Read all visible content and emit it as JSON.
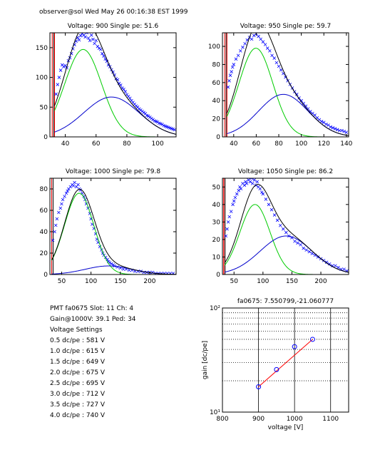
{
  "header": "observer@sol  Wed May 26 00:16:38 EST 1999",
  "colors": {
    "data": "#0000ff",
    "fit1": "#00cc00",
    "fit2": "#0000cc",
    "sum": "#000000",
    "cut": "#ff0000",
    "gain_line": "#ff0000"
  },
  "chart_data": [
    {
      "type": "scatter",
      "title": "Voltage: 900 Single pe: 51.6",
      "xlim": [
        30,
        112
      ],
      "ylim": [
        0,
        175
      ],
      "xticks": [
        40,
        60,
        80,
        100
      ],
      "yticks": [
        0,
        50,
        100,
        150
      ],
      "cuts": [
        31.5,
        33
      ],
      "components": [
        {
          "name": "single pe",
          "amp": 147,
          "mu": 51.6,
          "sigma": 12
        },
        {
          "name": "double pe",
          "amp": 67,
          "mu": 70,
          "sigma": 18
        }
      ],
      "points": [
        [
          34,
          72
        ],
        [
          35,
          88
        ],
        [
          36,
          100
        ],
        [
          37,
          112
        ],
        [
          38,
          121
        ],
        [
          39,
          118
        ],
        [
          40,
          120
        ],
        [
          41,
          116
        ],
        [
          42,
          128
        ],
        [
          43,
          133
        ],
        [
          44,
          140
        ],
        [
          45,
          148
        ],
        [
          46,
          155
        ],
        [
          47,
          161
        ],
        [
          48,
          167
        ],
        [
          49,
          163
        ],
        [
          50,
          170
        ],
        [
          51,
          174
        ],
        [
          52,
          171
        ],
        [
          53,
          168
        ],
        [
          54,
          175
        ],
        [
          55,
          166
        ],
        [
          56,
          162
        ],
        [
          57,
          171
        ],
        [
          58,
          164
        ],
        [
          59,
          157
        ],
        [
          60,
          162
        ],
        [
          61,
          152
        ],
        [
          62,
          149
        ],
        [
          63,
          147
        ],
        [
          64,
          140
        ],
        [
          65,
          136
        ],
        [
          66,
          131
        ],
        [
          67,
          127
        ],
        [
          68,
          121
        ],
        [
          69,
          118
        ],
        [
          70,
          113
        ],
        [
          71,
          109
        ],
        [
          72,
          104
        ],
        [
          73,
          98
        ],
        [
          74,
          96
        ],
        [
          75,
          90
        ],
        [
          76,
          87
        ],
        [
          77,
          82
        ],
        [
          78,
          80
        ],
        [
          79,
          76
        ],
        [
          80,
          71
        ],
        [
          81,
          68
        ],
        [
          82,
          65
        ],
        [
          83,
          61
        ],
        [
          84,
          58
        ],
        [
          85,
          55
        ],
        [
          86,
          52
        ],
        [
          87,
          50
        ],
        [
          88,
          47
        ],
        [
          89,
          45
        ],
        [
          90,
          43
        ],
        [
          91,
          41
        ],
        [
          92,
          39
        ],
        [
          93,
          36
        ],
        [
          94,
          35
        ],
        [
          95,
          33
        ],
        [
          96,
          31
        ],
        [
          97,
          29
        ],
        [
          98,
          27
        ],
        [
          99,
          26
        ],
        [
          100,
          25
        ],
        [
          101,
          23
        ],
        [
          102,
          22
        ],
        [
          103,
          21
        ],
        [
          104,
          19
        ],
        [
          105,
          18
        ],
        [
          106,
          17
        ],
        [
          107,
          16
        ],
        [
          108,
          15
        ],
        [
          109,
          14
        ],
        [
          110,
          13
        ],
        [
          111,
          12
        ]
      ]
    },
    {
      "type": "scatter",
      "title": "Voltage: 950 Single pe: 59.7",
      "xlim": [
        30,
        142
      ],
      "ylim": [
        0,
        115
      ],
      "xticks": [
        40,
        60,
        80,
        100,
        120,
        140
      ],
      "yticks": [
        0,
        20,
        40,
        60,
        80,
        100
      ],
      "cuts": [
        32,
        34
      ],
      "components": [
        {
          "name": "single pe",
          "amp": 98,
          "mu": 59.7,
          "sigma": 15
        },
        {
          "name": "double pe",
          "amp": 47,
          "mu": 84,
          "sigma": 22
        }
      ],
      "points": [
        [
          35,
          55
        ],
        [
          36,
          62
        ],
        [
          37,
          68
        ],
        [
          38,
          72
        ],
        [
          39,
          77
        ],
        [
          40,
          80
        ],
        [
          42,
          86
        ],
        [
          44,
          90
        ],
        [
          46,
          95
        ],
        [
          48,
          99
        ],
        [
          50,
          103
        ],
        [
          52,
          107
        ],
        [
          54,
          110
        ],
        [
          56,
          108
        ],
        [
          58,
          112
        ],
        [
          60,
          114
        ],
        [
          62,
          111
        ],
        [
          64,
          108
        ],
        [
          66,
          105
        ],
        [
          68,
          102
        ],
        [
          70,
          98
        ],
        [
          72,
          95
        ],
        [
          74,
          90
        ],
        [
          76,
          87
        ],
        [
          78,
          82
        ],
        [
          80,
          78
        ],
        [
          82,
          74
        ],
        [
          84,
          70
        ],
        [
          86,
          66
        ],
        [
          88,
          62
        ],
        [
          90,
          58
        ],
        [
          92,
          54
        ],
        [
          94,
          50
        ],
        [
          96,
          47
        ],
        [
          98,
          43
        ],
        [
          100,
          40
        ],
        [
          102,
          37
        ],
        [
          104,
          34
        ],
        [
          106,
          31
        ],
        [
          108,
          28
        ],
        [
          110,
          26
        ],
        [
          112,
          24
        ],
        [
          114,
          21
        ],
        [
          116,
          19
        ],
        [
          118,
          17
        ],
        [
          120,
          16
        ],
        [
          122,
          14
        ],
        [
          124,
          13
        ],
        [
          126,
          11
        ],
        [
          128,
          10
        ],
        [
          130,
          9
        ],
        [
          132,
          8
        ],
        [
          134,
          7
        ],
        [
          136,
          7
        ],
        [
          138,
          6
        ],
        [
          140,
          5
        ]
      ]
    },
    {
      "type": "scatter",
      "title": "Voltage: 1000 Single pe: 79.8",
      "xlim": [
        30,
        245
      ],
      "ylim": [
        0,
        90
      ],
      "xticks": [
        50,
        100,
        150,
        200
      ],
      "yticks": [
        0,
        20,
        40,
        60,
        80
      ],
      "cuts": [
        33
      ],
      "components": [
        {
          "name": "single pe",
          "amp": 76,
          "mu": 79.8,
          "sigma": 25
        },
        {
          "name": "double pe",
          "amp": 8,
          "mu": 130,
          "sigma": 40
        }
      ],
      "points": [
        [
          35,
          32
        ],
        [
          38,
          40
        ],
        [
          40,
          46
        ],
        [
          42,
          52
        ],
        [
          45,
          58
        ],
        [
          48,
          62
        ],
        [
          50,
          66
        ],
        [
          52,
          70
        ],
        [
          55,
          73
        ],
        [
          58,
          76
        ],
        [
          60,
          78
        ],
        [
          62,
          80
        ],
        [
          65,
          82
        ],
        [
          68,
          84
        ],
        [
          70,
          83
        ],
        [
          72,
          86
        ],
        [
          75,
          82
        ],
        [
          78,
          84
        ],
        [
          80,
          80
        ],
        [
          82,
          79
        ],
        [
          85,
          76
        ],
        [
          88,
          73
        ],
        [
          90,
          70
        ],
        [
          92,
          66
        ],
        [
          95,
          62
        ],
        [
          98,
          57
        ],
        [
          100,
          52
        ],
        [
          102,
          47
        ],
        [
          105,
          43
        ],
        [
          108,
          38
        ],
        [
          110,
          33
        ],
        [
          112,
          30
        ],
        [
          115,
          26
        ],
        [
          118,
          23
        ],
        [
          120,
          20
        ],
        [
          122,
          18
        ],
        [
          125,
          16
        ],
        [
          128,
          14
        ],
        [
          130,
          12
        ],
        [
          132,
          11
        ],
        [
          135,
          10
        ],
        [
          138,
          9
        ],
        [
          140,
          8
        ],
        [
          145,
          7
        ],
        [
          150,
          6
        ],
        [
          155,
          5
        ],
        [
          160,
          5
        ],
        [
          165,
          4
        ],
        [
          170,
          4
        ],
        [
          175,
          3
        ],
        [
          180,
          3
        ],
        [
          185,
          3
        ],
        [
          190,
          2
        ],
        [
          195,
          2
        ],
        [
          200,
          2
        ],
        [
          205,
          2
        ],
        [
          210,
          1
        ],
        [
          215,
          1
        ],
        [
          220,
          1
        ],
        [
          225,
          1
        ],
        [
          230,
          1
        ],
        [
          235,
          1
        ],
        [
          240,
          1
        ]
      ]
    },
    {
      "type": "scatter",
      "title": "Voltage: 1050 Single pe: 86.2",
      "xlim": [
        30,
        248
      ],
      "ylim": [
        0,
        55
      ],
      "xticks": [
        50,
        100,
        150,
        200
      ],
      "yticks": [
        0,
        10,
        20,
        30,
        40,
        50
      ],
      "cuts": [
        32,
        34
      ],
      "components": [
        {
          "name": "single pe",
          "amp": 40,
          "mu": 86.2,
          "sigma": 26
        },
        {
          "name": "double pe",
          "amp": 22,
          "mu": 140,
          "sigma": 45
        }
      ],
      "points": [
        [
          36,
          22
        ],
        [
          38,
          26
        ],
        [
          40,
          30
        ],
        [
          42,
          33
        ],
        [
          45,
          36
        ],
        [
          48,
          40
        ],
        [
          50,
          42
        ],
        [
          52,
          44
        ],
        [
          55,
          46
        ],
        [
          58,
          48
        ],
        [
          60,
          50
        ],
        [
          62,
          49
        ],
        [
          65,
          52
        ],
        [
          68,
          51
        ],
        [
          70,
          53
        ],
        [
          72,
          52
        ],
        [
          75,
          54
        ],
        [
          78,
          53
        ],
        [
          80,
          55
        ],
        [
          82,
          52
        ],
        [
          85,
          54
        ],
        [
          88,
          51
        ],
        [
          90,
          53
        ],
        [
          92,
          50
        ],
        [
          95,
          49
        ],
        [
          98,
          47
        ],
        [
          100,
          46
        ],
        [
          105,
          43
        ],
        [
          110,
          40
        ],
        [
          115,
          37
        ],
        [
          120,
          34
        ],
        [
          125,
          31
        ],
        [
          130,
          28
        ],
        [
          135,
          26
        ],
        [
          140,
          24
        ],
        [
          145,
          22
        ],
        [
          150,
          21
        ],
        [
          155,
          19
        ],
        [
          160,
          18
        ],
        [
          165,
          17
        ],
        [
          170,
          15
        ],
        [
          175,
          14
        ],
        [
          180,
          13
        ],
        [
          185,
          12
        ],
        [
          190,
          11
        ],
        [
          195,
          10
        ],
        [
          200,
          9
        ],
        [
          205,
          8
        ],
        [
          210,
          7
        ],
        [
          215,
          6
        ],
        [
          220,
          5
        ],
        [
          225,
          5
        ],
        [
          230,
          4
        ],
        [
          235,
          3
        ],
        [
          240,
          3
        ],
        [
          245,
          2
        ]
      ]
    },
    {
      "type": "scatter",
      "title": "fa0675: 7.550799,-21.060777",
      "xlabel": "voltage [V]",
      "ylabel": "gain [dc/pe]",
      "xlim": [
        800,
        1150
      ],
      "ylim": [
        10,
        100
      ],
      "yscale": "log",
      "xticks": [
        800,
        900,
        1000,
        1100
      ],
      "ytick_labels": [
        "10¹",
        "10²"
      ],
      "grid": true,
      "x": [
        900,
        950,
        1000,
        1050
      ],
      "y": [
        17.5,
        25.6,
        42.5,
        50
      ],
      "fit": {
        "slope": 7.550799,
        "intercept": -21.060777
      }
    }
  ],
  "pmt_info": {
    "line1": "PMT fa0675 Slot: 11 Ch: 4",
    "line2": "Gain@1000V: 39.1 Ped: 34",
    "line3": "Voltage Settings",
    "settings": [
      "0.5 dc/pe : 581 V",
      "1.0 dc/pe : 615 V",
      "1.5 dc/pe : 649 V",
      "2.0 dc/pe : 675 V",
      "2.5 dc/pe : 695 V",
      "3.0 dc/pe : 712 V",
      "3.5 dc/pe : 727 V",
      "4.0 dc/pe : 740 V"
    ]
  }
}
